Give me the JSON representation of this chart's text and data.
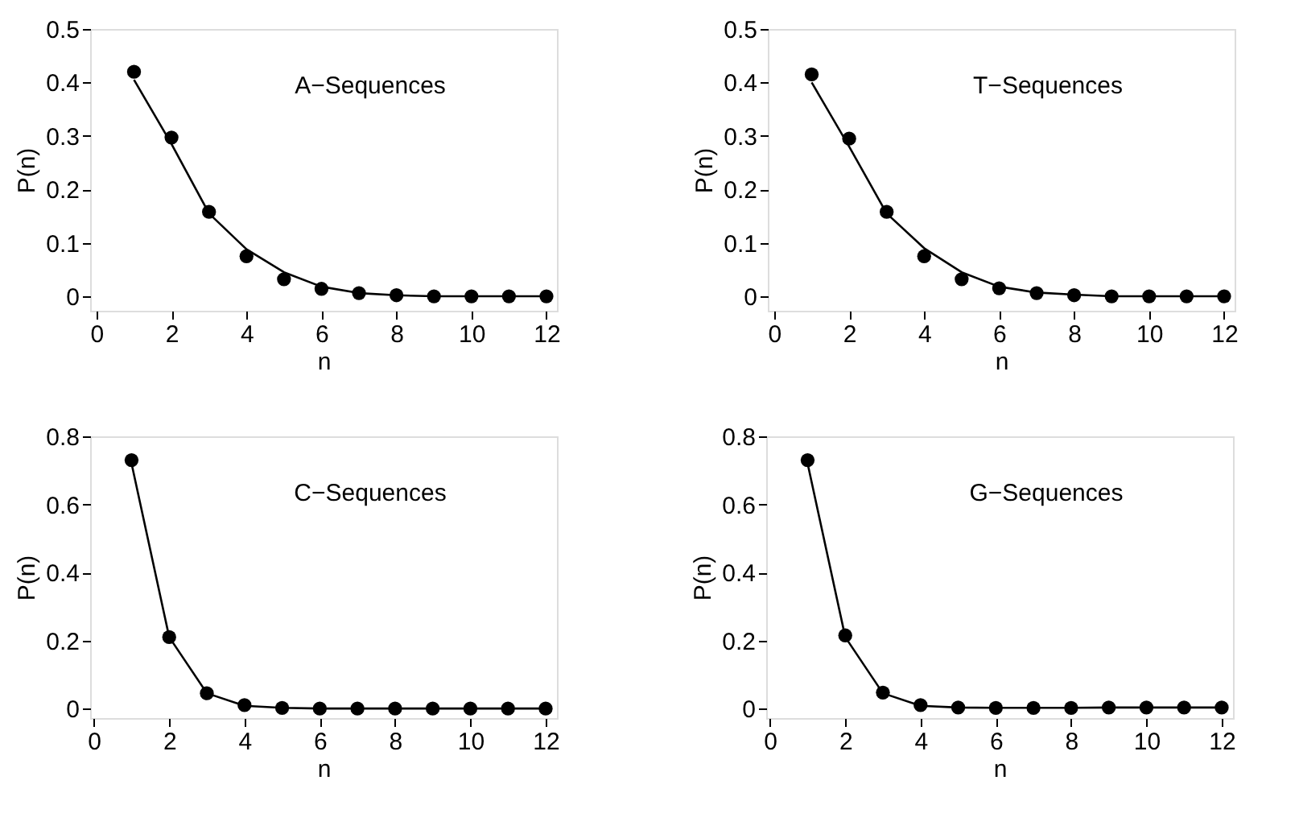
{
  "chart_data": [
    {
      "type": "scatter",
      "annotations": [
        "A−Sequences"
      ],
      "xlabel": "n",
      "ylabel": "P(n)",
      "xlim": [
        -0.17,
        12.28
      ],
      "ylim": [
        -0.027,
        0.5
      ],
      "xticks": [
        0,
        2,
        4,
        6,
        8,
        10,
        12
      ],
      "yticks": [
        0,
        0.1,
        0.2,
        0.3,
        0.4,
        0.5
      ],
      "grid": false,
      "x": [
        1,
        2,
        3,
        4,
        5,
        6,
        7,
        8,
        9,
        10,
        11,
        12
      ],
      "series": [
        {
          "color": "#000000",
          "marker": "circle",
          "values": [
            0.42,
            0.297,
            0.158,
            0.075,
            0.032,
            0.014,
            0.006,
            0.002,
            0,
            0,
            0,
            0
          ]
        },
        {
          "type": "line",
          "color": "#000000",
          "marker": "none",
          "line_style": "solid",
          "values": [
            0.405,
            0.285,
            0.155,
            0.088,
            0.045,
            0.018,
            0.006,
            0.002,
            0,
            0,
            0,
            0
          ]
        }
      ]
    },
    {
      "type": "scatter",
      "annotations": [
        "T−Sequences"
      ],
      "xlabel": "n",
      "ylabel": "P(n)",
      "xlim": [
        -0.17,
        12.28
      ],
      "ylim": [
        -0.027,
        0.5
      ],
      "xticks": [
        0,
        2,
        4,
        6,
        8,
        10,
        12
      ],
      "yticks": [
        0,
        0.1,
        0.2,
        0.3,
        0.4,
        0.5
      ],
      "grid": false,
      "x": [
        1,
        2,
        3,
        4,
        5,
        6,
        7,
        8,
        9,
        10,
        11,
        12
      ],
      "series": [
        {
          "color": "#000000",
          "marker": "circle",
          "values": [
            0.415,
            0.295,
            0.158,
            0.075,
            0.032,
            0.015,
            0.006,
            0.002,
            0,
            0,
            0,
            0
          ]
        },
        {
          "type": "line",
          "color": "#000000",
          "marker": "none",
          "line_style": "solid",
          "values": [
            0.4,
            0.28,
            0.155,
            0.09,
            0.045,
            0.018,
            0.007,
            0.003,
            0,
            0,
            0,
            0
          ]
        }
      ]
    },
    {
      "type": "scatter",
      "annotations": [
        "C−Sequences"
      ],
      "xlabel": "n",
      "ylabel": "P(n)",
      "xlim": [
        -0.1,
        12.3
      ],
      "ylim": [
        -0.028,
        0.8
      ],
      "xticks": [
        0,
        2,
        4,
        6,
        8,
        10,
        12
      ],
      "yticks": [
        0,
        0.2,
        0.4,
        0.6,
        0.8
      ],
      "grid": false,
      "x": [
        1,
        2,
        3,
        4,
        5,
        6,
        7,
        8,
        9,
        10,
        11,
        12
      ],
      "series": [
        {
          "color": "#000000",
          "marker": "circle",
          "values": [
            0.73,
            0.21,
            0.045,
            0.01,
            0.002,
            0,
            0,
            0,
            0,
            0,
            0,
            0
          ]
        },
        {
          "type": "line",
          "color": "#000000",
          "marker": "none",
          "line_style": "solid",
          "values": [
            0.72,
            0.21,
            0.045,
            0.008,
            0.002,
            0,
            0,
            0,
            0,
            0,
            0,
            0
          ]
        }
      ]
    },
    {
      "type": "scatter",
      "annotations": [
        "G−Sequences"
      ],
      "xlabel": "n",
      "ylabel": "P(n)",
      "xlim": [
        -0.1,
        12.3
      ],
      "ylim": [
        -0.028,
        0.8
      ],
      "xticks": [
        0,
        2,
        4,
        6,
        8,
        10,
        12
      ],
      "yticks": [
        0,
        0.2,
        0.4,
        0.6,
        0.8
      ],
      "grid": false,
      "x": [
        1,
        2,
        3,
        4,
        5,
        6,
        7,
        8,
        9,
        10,
        11,
        12
      ],
      "series": [
        {
          "color": "#000000",
          "marker": "circle",
          "values": [
            0.73,
            0.215,
            0.047,
            0.01,
            0.003,
            0.002,
            0.002,
            0.002,
            0.003,
            0.003,
            0.003,
            0.003
          ]
        },
        {
          "type": "line",
          "color": "#000000",
          "marker": "none",
          "line_style": "solid",
          "values": [
            0.72,
            0.21,
            0.045,
            0.008,
            0.003,
            0.002,
            0.002,
            0.002,
            0.003,
            0.003,
            0.003,
            0.003
          ]
        }
      ]
    }
  ]
}
